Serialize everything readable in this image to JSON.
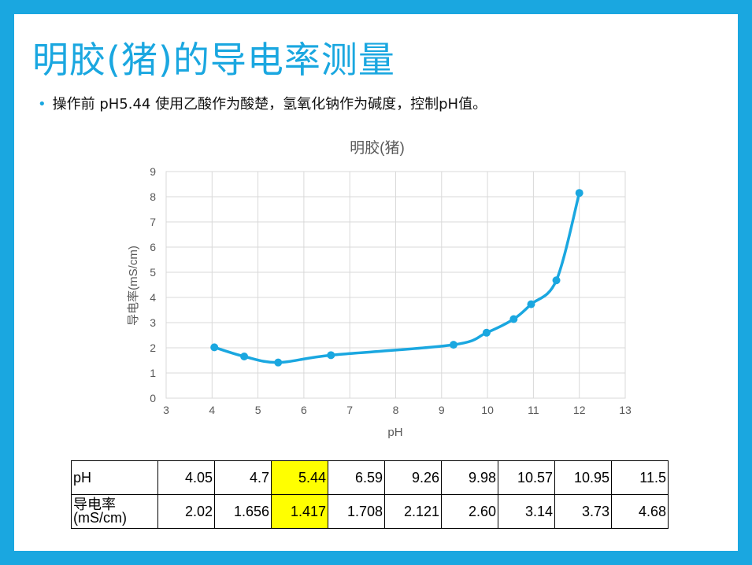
{
  "slide": {
    "title": "明胶(猪)的导电率测量",
    "bullet": "操作前 pH5.44  使用乙酸作为酸楚，氢氧化钠作为碱度，控制pH值。"
  },
  "colors": {
    "frame": "#1aa7e0",
    "line": "#1aa7e0",
    "highlight": "#ffff00"
  },
  "chart_data": {
    "type": "scatter",
    "mode": "smooth-line-markers",
    "title": "明胶(猪)",
    "xlabel": "pH",
    "ylabel": "导电率(mS/cm)",
    "xlim": [
      3,
      13
    ],
    "ylim": [
      0,
      9
    ],
    "xticks": [
      3,
      4,
      5,
      6,
      7,
      8,
      9,
      10,
      11,
      12,
      13
    ],
    "yticks": [
      0,
      1,
      2,
      3,
      4,
      5,
      6,
      7,
      8,
      9
    ],
    "grid": true,
    "legend": "none",
    "series": [
      {
        "x": [
          4.05,
          4.7,
          5.44,
          6.59,
          9.26,
          9.98,
          10.57,
          10.95,
          11.5,
          12.0
        ],
        "y": [
          2.02,
          1.656,
          1.417,
          1.708,
          2.121,
          2.6,
          3.14,
          3.73,
          4.68,
          8.15
        ]
      }
    ]
  },
  "table": {
    "rows": [
      {
        "header": "pH",
        "values": [
          "4.05",
          "4.7",
          "5.44",
          "6.59",
          "9.26",
          "9.98",
          "10.57",
          "10.95",
          "11.5"
        ]
      },
      {
        "header_lines": [
          "导电率",
          "(mS/cm)"
        ],
        "values": [
          "2.02",
          "1.656",
          "1.417",
          "1.708",
          "2.121",
          "2.60",
          "3.14",
          "3.73",
          "4.68"
        ]
      }
    ],
    "highlight_column": 2
  }
}
